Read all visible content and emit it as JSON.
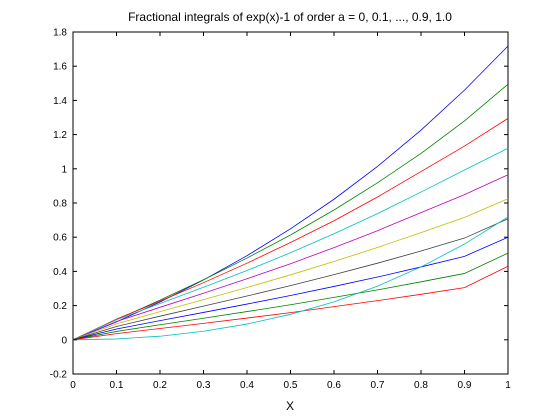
{
  "chart_data": {
    "type": "line",
    "title": "Fractional integrals of exp(x)-1 of order a = 0, 0.1, ..., 0.9, 1.0",
    "xlabel": "X",
    "ylabel": "",
    "xlim": [
      0,
      1
    ],
    "ylim": [
      -0.2,
      1.8
    ],
    "xticks": [
      0,
      0.1,
      0.2,
      0.3,
      0.4,
      0.5,
      0.6,
      0.7,
      0.8,
      0.9,
      1
    ],
    "xtick_labels": [
      "0",
      "0.1",
      "0.2",
      "0.3",
      "0.4",
      "0.5",
      "0.6",
      "0.7",
      "0.8",
      "0.9",
      "1"
    ],
    "yticks": [
      -0.2,
      0,
      0.2,
      0.4,
      0.6,
      0.8,
      1,
      1.2,
      1.4,
      1.6,
      1.8
    ],
    "ytick_labels": [
      "-0.2",
      "0",
      "0.2",
      "0.4",
      "0.6",
      "0.8",
      "1",
      "1.2",
      "1.4",
      "1.6",
      "1.8"
    ],
    "grid": false,
    "x": [
      0,
      0.1,
      0.2,
      0.3,
      0.4,
      0.5,
      0.6,
      0.7,
      0.8,
      0.9,
      1.0
    ],
    "series": [
      {
        "color": "#0000ff",
        "values": [
          0,
          0.105,
          0.221,
          0.35,
          0.492,
          0.649,
          0.822,
          1.014,
          1.226,
          1.46,
          1.718
        ]
      },
      {
        "color": "#008000",
        "values": [
          0,
          0.118,
          0.232,
          0.351,
          0.478,
          0.613,
          0.759,
          0.918,
          1.09,
          1.28,
          1.495
        ]
      },
      {
        "color": "#ff0000",
        "values": [
          0,
          0.121,
          0.226,
          0.334,
          0.448,
          0.569,
          0.696,
          0.835,
          0.984,
          1.133,
          1.295
        ]
      },
      {
        "color": "#00bfbf",
        "values": [
          0,
          0.117,
          0.212,
          0.307,
          0.405,
          0.509,
          0.62,
          0.738,
          0.864,
          0.993,
          1.12
        ]
      },
      {
        "color": "#bf00bf",
        "values": [
          0,
          0.107,
          0.19,
          0.272,
          0.357,
          0.445,
          0.539,
          0.638,
          0.744,
          0.849,
          0.965
        ]
      },
      {
        "color": "#bfbf00",
        "values": [
          0,
          0.093,
          0.165,
          0.235,
          0.306,
          0.38,
          0.458,
          0.54,
          0.627,
          0.716,
          0.825
        ]
      },
      {
        "color": "#404040",
        "values": [
          0,
          0.078,
          0.138,
          0.197,
          0.256,
          0.317,
          0.381,
          0.448,
          0.519,
          0.595,
          0.708
        ]
      },
      {
        "color": "#0000ff",
        "values": [
          0,
          0.063,
          0.112,
          0.16,
          0.209,
          0.259,
          0.312,
          0.367,
          0.426,
          0.488,
          0.6
        ]
      },
      {
        "color": "#008000",
        "values": [
          0,
          0.049,
          0.088,
          0.126,
          0.165,
          0.205,
          0.248,
          0.292,
          0.339,
          0.388,
          0.507
        ]
      },
      {
        "color": "#ff0000",
        "values": [
          0,
          0.036,
          0.066,
          0.096,
          0.127,
          0.159,
          0.194,
          0.229,
          0.266,
          0.305,
          0.43
        ]
      },
      {
        "color": "#00bfbf",
        "values": [
          0,
          0.005,
          0.021,
          0.05,
          0.092,
          0.149,
          0.222,
          0.314,
          0.426,
          0.56,
          0.718
        ]
      }
    ]
  }
}
